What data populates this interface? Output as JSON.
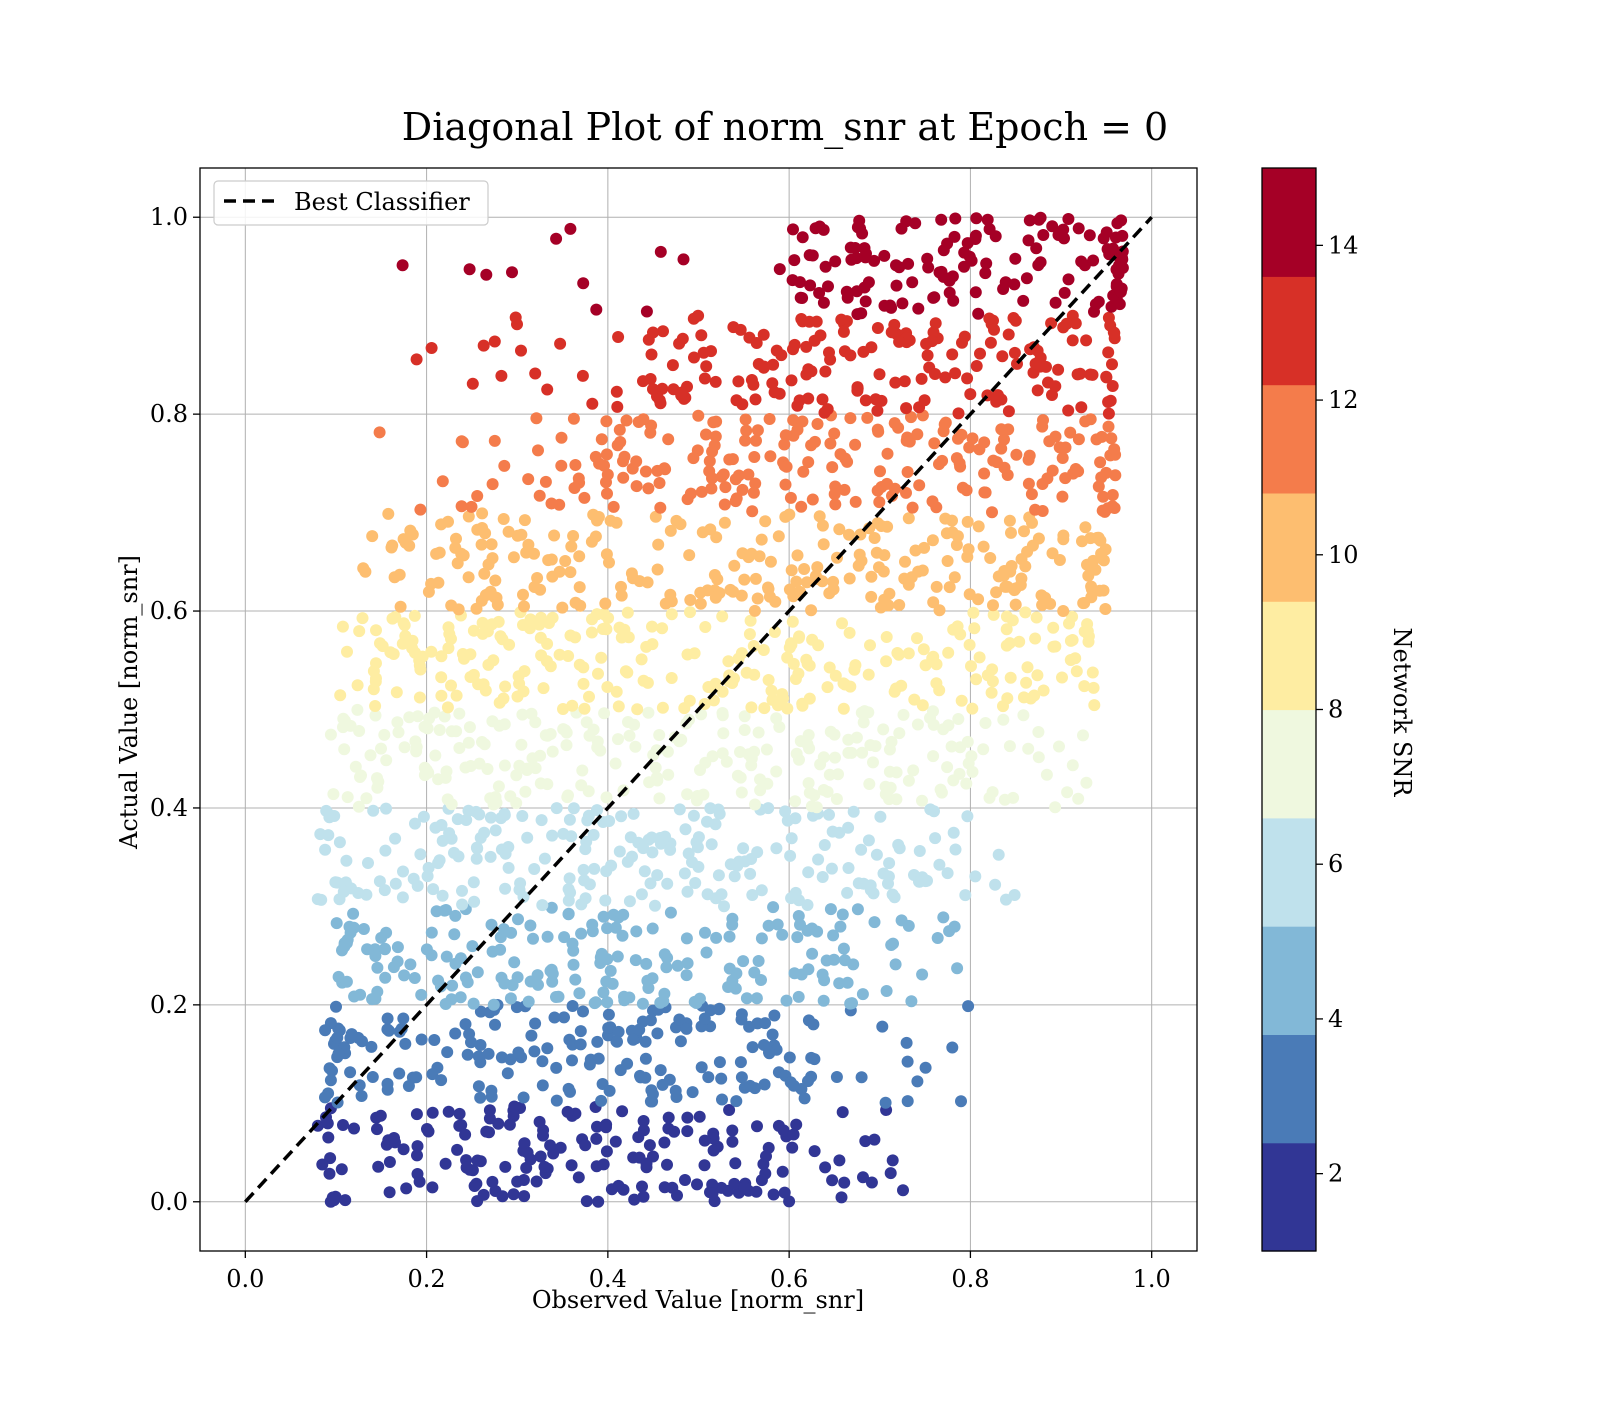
{
  "chart_data": {
    "type": "scatter",
    "title": "Diagonal Plot of norm_snr at Epoch = 0",
    "xlabel": "Observed Value [norm_snr]",
    "ylabel": "Actual Value [norm_snr]",
    "xlim": [
      -0.05,
      1.05
    ],
    "ylim": [
      -0.05,
      1.05
    ],
    "xticks": [
      0.0,
      0.2,
      0.4,
      0.6,
      0.8,
      1.0
    ],
    "xtick_labels": [
      "0.0",
      "0.2",
      "0.4",
      "0.6",
      "0.8",
      "1.0"
    ],
    "yticks": [
      0.0,
      0.2,
      0.4,
      0.6,
      0.8,
      1.0
    ],
    "ytick_labels": [
      "0.0",
      "0.2",
      "0.4",
      "0.6",
      "0.8",
      "1.0"
    ],
    "grid": true,
    "legend": {
      "position": "top-left",
      "entries": [
        "Best Classifier"
      ]
    },
    "reference_line": {
      "name": "Best Classifier",
      "x": [
        0.0,
        1.0
      ],
      "y": [
        0.0,
        1.0
      ],
      "style": "dashed",
      "color": "#000000"
    },
    "colorbar": {
      "label": "Network SNR",
      "range": [
        1,
        15
      ],
      "ticks": [
        2,
        4,
        6,
        8,
        10,
        12,
        14
      ],
      "tick_labels": [
        "2",
        "4",
        "6",
        "8",
        "10",
        "12",
        "14"
      ],
      "colors": [
        "#313695",
        "#4a7bb7",
        "#82b8d7",
        "#bfe1ec",
        "#eff8df",
        "#feeda2",
        "#fdbe70",
        "#f47c4b",
        "#d73027",
        "#a50026"
      ]
    },
    "bands": [
      {
        "snr_bin": 1,
        "y": [
          0.0,
          0.1
        ],
        "x_dense": [
          0.1,
          0.6
        ],
        "x_sparse": [
          0.08,
          0.73
        ],
        "color": "#313695"
      },
      {
        "snr_bin": 2,
        "y": [
          0.1,
          0.2
        ],
        "x_dense": [
          0.11,
          0.63
        ],
        "x_sparse": [
          0.08,
          0.8
        ],
        "color": "#4a7bb7"
      },
      {
        "snr_bin": 3,
        "y": [
          0.2,
          0.3
        ],
        "x_dense": [
          0.12,
          0.68
        ],
        "x_sparse": [
          0.1,
          0.83
        ],
        "color": "#82b8d7"
      },
      {
        "snr_bin": 4,
        "y": [
          0.3,
          0.4
        ],
        "x_dense": [
          0.13,
          0.76
        ],
        "x_sparse": [
          0.08,
          0.85
        ],
        "color": "#bfe1ec"
      },
      {
        "snr_bin": 5,
        "y": [
          0.4,
          0.5
        ],
        "x_dense": [
          0.14,
          0.84
        ],
        "x_sparse": [
          0.09,
          0.93
        ],
        "color": "#eff8df"
      },
      {
        "snr_bin": 6,
        "y": [
          0.5,
          0.6
        ],
        "x_dense": [
          0.16,
          0.91
        ],
        "x_sparse": [
          0.1,
          0.94
        ],
        "color": "#feeda2"
      },
      {
        "snr_bin": 7,
        "y": [
          0.6,
          0.7
        ],
        "x_dense": [
          0.2,
          0.93
        ],
        "x_sparse": [
          0.12,
          0.95
        ],
        "color": "#fdbe70"
      },
      {
        "snr_bin": 8,
        "y": [
          0.7,
          0.8
        ],
        "x_dense": [
          0.32,
          0.94
        ],
        "x_sparse": [
          0.14,
          0.96
        ],
        "color": "#f47c4b"
      },
      {
        "snr_bin": 9,
        "y": [
          0.8,
          0.9
        ],
        "x_dense": [
          0.44,
          0.95
        ],
        "x_sparse": [
          0.18,
          0.96
        ],
        "color": "#d73027"
      },
      {
        "snr_bin": 10,
        "y": [
          0.9,
          1.0
        ],
        "x_dense": [
          0.58,
          0.96
        ],
        "x_sparse": [
          0.14,
          0.97
        ],
        "color": "#a50026"
      }
    ]
  }
}
